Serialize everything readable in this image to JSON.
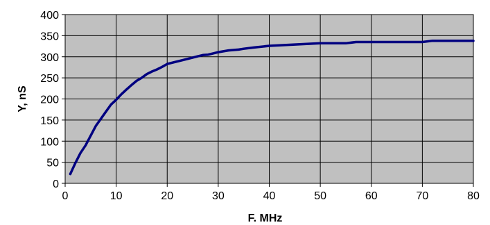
{
  "chart_data": {
    "type": "line",
    "title": "",
    "xlabel": "F. MHz",
    "ylabel": "Y, nS",
    "xlim": [
      0,
      80
    ],
    "ylim": [
      0,
      400
    ],
    "x_ticks": [
      0,
      10,
      20,
      30,
      40,
      50,
      60,
      70,
      80
    ],
    "y_ticks": [
      0,
      50,
      100,
      150,
      200,
      250,
      300,
      350,
      400
    ],
    "grid": true,
    "legend": "none",
    "colors": {
      "plot_background": "#c0c0c0",
      "grid": "#000000",
      "line": "#000080"
    },
    "series": [
      {
        "x": [
          1,
          2,
          3,
          4,
          5,
          6,
          7,
          8,
          9,
          10,
          11,
          12,
          13,
          14,
          15,
          16,
          17,
          18,
          19,
          20,
          22,
          24,
          26,
          27,
          28,
          29,
          30,
          31,
          32,
          33,
          34,
          35,
          37,
          40,
          45,
          50,
          55,
          57,
          60,
          65,
          70,
          72,
          75,
          80
        ],
        "y": [
          22,
          48,
          72,
          90,
          113,
          136,
          153,
          170,
          187,
          198,
          211,
          222,
          233,
          243,
          250,
          259,
          265,
          270,
          276,
          283,
          289,
          295,
          301,
          304,
          305,
          308,
          311,
          313,
          315,
          316,
          317,
          319,
          322,
          326,
          329,
          332,
          332,
          335,
          335,
          335,
          335,
          338,
          338,
          338
        ]
      }
    ]
  }
}
